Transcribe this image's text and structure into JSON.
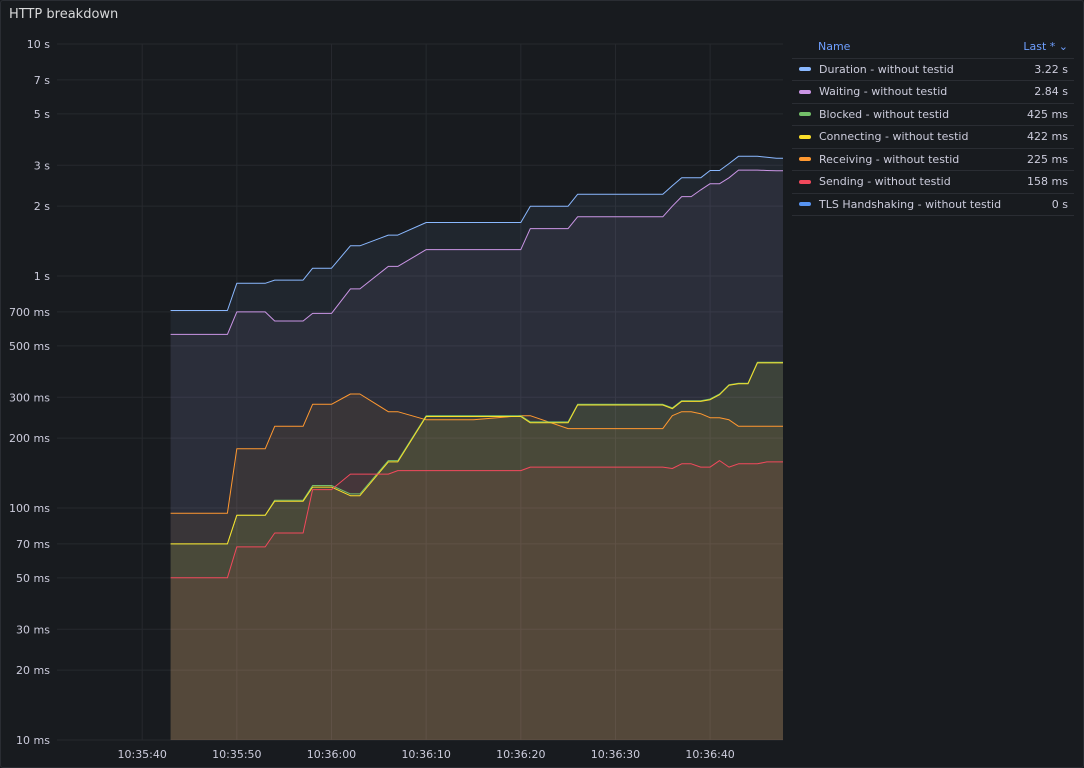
{
  "panel": {
    "title": "HTTP breakdown"
  },
  "legend": {
    "name_header": "Name",
    "value_header": "Last * ⌄",
    "items": [
      {
        "name": "Duration  -  without testid",
        "value": "3.22 s",
        "color": "#8ab8ff"
      },
      {
        "name": "Waiting  -  without testid",
        "value": "2.84 s",
        "color": "#ca95e5"
      },
      {
        "name": "Blocked  -  without testid",
        "value": "425 ms",
        "color": "#73bf69"
      },
      {
        "name": "Connecting  -  without testid",
        "value": "422 ms",
        "color": "#fade2a"
      },
      {
        "name": "Receiving  -  without testid",
        "value": "225 ms",
        "color": "#ff9830"
      },
      {
        "name": "Sending  -  without testid",
        "value": "158 ms",
        "color": "#f2495c"
      },
      {
        "name": "TLS Handshaking  -  without testid",
        "value": "0 s",
        "color": "#5794f2"
      }
    ]
  },
  "chart_data": {
    "type": "area",
    "yscale": "log",
    "ylim_ms": [
      10,
      10000
    ],
    "grid": true,
    "legend_position": "right",
    "y_ticks": [
      {
        "v": 10000,
        "label": "10 s"
      },
      {
        "v": 7000,
        "label": "7 s"
      },
      {
        "v": 5000,
        "label": "5 s"
      },
      {
        "v": 3000,
        "label": "3 s"
      },
      {
        "v": 2000,
        "label": "2 s"
      },
      {
        "v": 1000,
        "label": "1 s"
      },
      {
        "v": 700,
        "label": "700 ms"
      },
      {
        "v": 500,
        "label": "500 ms"
      },
      {
        "v": 300,
        "label": "300 ms"
      },
      {
        "v": 200,
        "label": "200 ms"
      },
      {
        "v": 100,
        "label": "100 ms"
      },
      {
        "v": 70,
        "label": "70 ms"
      },
      {
        "v": 50,
        "label": "50 ms"
      },
      {
        "v": 30,
        "label": "30 ms"
      },
      {
        "v": 20,
        "label": "20 ms"
      },
      {
        "v": 10,
        "label": "10 ms"
      }
    ],
    "x_ticks": [
      {
        "t": 40,
        "label": "10:35:40"
      },
      {
        "t": 50,
        "label": "10:35:50"
      },
      {
        "t": 60,
        "label": "10:36:00"
      },
      {
        "t": 70,
        "label": "10:36:10"
      },
      {
        "t": 80,
        "label": "10:36:20"
      },
      {
        "t": 90,
        "label": "10:36:30"
      },
      {
        "t": 100,
        "label": "10:36:40"
      }
    ],
    "xlim_seconds_after_10_35_00": [
      31.0,
      107.7
    ],
    "x": [
      43,
      49,
      50,
      53,
      54,
      57,
      58,
      60,
      62,
      63,
      66,
      67,
      70,
      71,
      75,
      80,
      81,
      85,
      86,
      90,
      95,
      96,
      97,
      98,
      99,
      100,
      101,
      102,
      103,
      104,
      105,
      106,
      107,
      107.7
    ],
    "series": [
      {
        "name": "Duration - without testid",
        "color": "#8ab8ff",
        "values": [
          710,
          710,
          930,
          930,
          960,
          960,
          1080,
          1080,
          1350,
          1350,
          1500,
          1500,
          1700,
          1700,
          1700,
          1700,
          2000,
          2000,
          2250,
          2250,
          2250,
          2450,
          2650,
          2650,
          2650,
          2850,
          2850,
          3050,
          3280,
          3280,
          3280,
          3250,
          3220,
          3220
        ]
      },
      {
        "name": "Waiting - without testid",
        "color": "#ca95e5",
        "values": [
          560,
          560,
          700,
          700,
          640,
          640,
          690,
          690,
          880,
          880,
          1100,
          1100,
          1300,
          1300,
          1300,
          1300,
          1600,
          1600,
          1800,
          1800,
          1800,
          2000,
          2200,
          2200,
          2350,
          2500,
          2500,
          2650,
          2860,
          2860,
          2860,
          2850,
          2840,
          2840
        ]
      },
      {
        "name": "Blocked - without testid",
        "color": "#73bf69",
        "values": [
          70,
          70,
          93,
          93,
          108,
          108,
          125,
          125,
          115,
          115,
          160,
          160,
          250,
          250,
          250,
          250,
          235,
          235,
          280,
          280,
          280,
          270,
          290,
          290,
          290,
          295,
          310,
          340,
          345,
          345,
          425,
          425,
          425,
          425
        ]
      },
      {
        "name": "Connecting - without testid",
        "color": "#fade2a",
        "values": [
          70,
          70,
          93,
          93,
          107,
          107,
          123,
          123,
          113,
          113,
          158,
          158,
          248,
          248,
          248,
          248,
          233,
          233,
          278,
          278,
          278,
          268,
          288,
          288,
          288,
          293,
          308,
          338,
          343,
          343,
          422,
          422,
          422,
          422
        ]
      },
      {
        "name": "Receiving - without testid",
        "color": "#ff9830",
        "values": [
          95,
          95,
          180,
          180,
          225,
          225,
          280,
          280,
          310,
          310,
          260,
          260,
          240,
          240,
          240,
          250,
          250,
          220,
          220,
          220,
          220,
          250,
          260,
          260,
          255,
          245,
          245,
          240,
          225,
          225,
          225,
          225,
          225,
          225
        ]
      },
      {
        "name": "Sending - without testid",
        "color": "#f2495c",
        "values": [
          50,
          50,
          68,
          68,
          78,
          78,
          120,
          120,
          140,
          140,
          140,
          145,
          145,
          145,
          145,
          145,
          150,
          150,
          150,
          150,
          150,
          148,
          155,
          155,
          150,
          150,
          160,
          150,
          155,
          155,
          155,
          158,
          158,
          158
        ]
      },
      {
        "name": "TLS Handshaking - without testid",
        "color": "#5794f2",
        "values": [
          0,
          0,
          0,
          0,
          0,
          0,
          0,
          0,
          0,
          0,
          0,
          0,
          0,
          0,
          0,
          0,
          0,
          0,
          0,
          0,
          0,
          0,
          0,
          0,
          0,
          0,
          0,
          0,
          0,
          0,
          0,
          0,
          0,
          0
        ]
      }
    ]
  }
}
